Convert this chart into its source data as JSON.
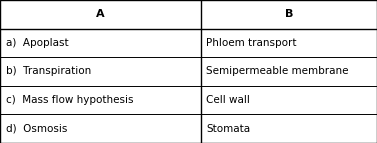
{
  "col_a_header": "A",
  "col_b_header": "B",
  "rows": [
    {
      "a": "a)  Apoplast",
      "b": "Phloem transport"
    },
    {
      "a": "b)  Transpiration",
      "b": "Semipermeable membrane"
    },
    {
      "a": "c)  Mass flow hypothesis",
      "b": "Cell wall"
    },
    {
      "a": "d)  Osmosis",
      "b": "Stomata"
    }
  ],
  "col_split": 0.532,
  "bg_color": "#ffffff",
  "border_color": "#000000",
  "header_fontsize": 8.0,
  "body_fontsize": 7.5,
  "fig_width": 3.77,
  "fig_height": 1.43,
  "dpi": 100
}
